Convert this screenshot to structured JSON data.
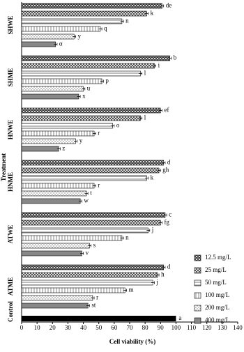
{
  "chart_data": {
    "type": "bar",
    "orientation": "horizontal",
    "xlabel": "Cell viability (%)",
    "ylabel": "Treatment",
    "categories": [
      "SHWE",
      "SHME",
      "HNWE",
      "HNME",
      "ATWE",
      "ATME",
      "Control"
    ],
    "series": [
      {
        "name": "12.5 mg/L",
        "color": "#222222",
        "values": [
          91,
          96,
          90,
          92,
          93,
          92,
          null
        ],
        "errors": [
          1,
          1,
          1,
          1,
          1,
          1,
          null
        ],
        "value_labels": [
          "de",
          "b",
          "ef",
          "d",
          "c",
          "d",
          null
        ]
      },
      {
        "name": "25 mg/L",
        "color": "#333333",
        "values": [
          81,
          86,
          77,
          89,
          90,
          88,
          null
        ],
        "errors": [
          1,
          1,
          1,
          1,
          1,
          1,
          null
        ],
        "value_labels": [
          "k",
          "i",
          "l",
          "gh",
          "fg",
          "h",
          null
        ]
      },
      {
        "name": "50 mg/L",
        "color": "#555555",
        "values": [
          65,
          77,
          59,
          81,
          82,
          85,
          null
        ],
        "errors": [
          1,
          1,
          1,
          1,
          1,
          1,
          null
        ],
        "value_labels": [
          "n",
          "l",
          "o",
          "k",
          "j",
          "j",
          null
        ]
      },
      {
        "name": "100 mg/L",
        "color": "#666666",
        "values": [
          51,
          52,
          47,
          47,
          65,
          67,
          null
        ],
        "errors": [
          1,
          1,
          1,
          1,
          1,
          1,
          null
        ],
        "value_labels": [
          "q",
          "p",
          "r",
          "r",
          "n",
          "m",
          null
        ]
      },
      {
        "name": "200 mg/L",
        "color": "#777777",
        "values": [
          34,
          40,
          35,
          42,
          44,
          46,
          null
        ],
        "errors": [
          1,
          1,
          1,
          1,
          1,
          1,
          null
        ],
        "value_labels": [
          "y",
          "u",
          "y",
          "t",
          "s",
          "r",
          null
        ]
      },
      {
        "name": "400 mg/L",
        "color": "#888888",
        "values": [
          22,
          37,
          24,
          38,
          39,
          43,
          null
        ],
        "errors": [
          1,
          1,
          1,
          1,
          1,
          1,
          null
        ],
        "value_labels": [
          "α",
          "x",
          "z",
          "w",
          "v",
          "st",
          null
        ]
      }
    ],
    "control_bar": {
      "value": 100,
      "value_label": "a",
      "color": "#000000"
    },
    "xlim": [
      0,
      140
    ],
    "xticks": [
      0,
      10,
      20,
      30,
      40,
      50,
      60,
      70,
      80,
      90,
      100,
      110,
      120,
      130,
      140
    ],
    "legend": "lower right"
  }
}
